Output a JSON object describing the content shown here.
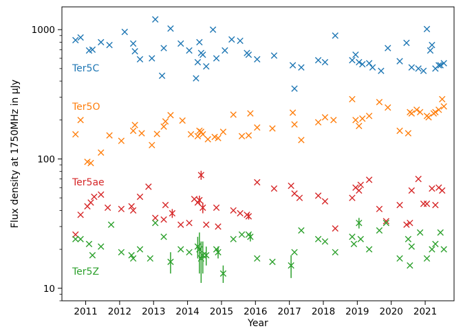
{
  "chart_data": {
    "type": "scatter",
    "xlabel": "Year",
    "ylabel": "Flux density at 1750MHz in μJy",
    "xlim": [
      2010.3,
      2021.85
    ],
    "ylim": [
      8.0,
      1500
    ],
    "yscale": "log",
    "grid": false,
    "legend": "none",
    "x_ticks": [
      2011,
      2012,
      2013,
      2014,
      2015,
      2016,
      2017,
      2018,
      2019,
      2020,
      2021
    ],
    "x_tick_labels": [
      "2011",
      "2012",
      "2013",
      "2014",
      "2015",
      "2016",
      "2017",
      "2018",
      "2019",
      "2020",
      "2021"
    ],
    "y_ticks": [
      10,
      100,
      1000
    ],
    "y_tick_labels": [
      "10",
      "100",
      "1000"
    ],
    "series": [
      {
        "name": "Ter5C",
        "color": "#1f77b4",
        "x": [
          2010.7,
          2010.85,
          2011.1,
          2011.2,
          2011.45,
          2011.7,
          2012.15,
          2012.4,
          2012.45,
          2012.6,
          2012.95,
          2013.05,
          2013.25,
          2013.3,
          2013.5,
          2013.8,
          2014.05,
          2014.25,
          2014.3,
          2014.35,
          2014.4,
          2014.45,
          2014.55,
          2014.75,
          2014.85,
          2015.1,
          2015.3,
          2015.55,
          2015.75,
          2015.8,
          2016.05,
          2016.55,
          2017.1,
          2017.15,
          2017.35,
          2017.85,
          2018.05,
          2018.35,
          2018.85,
          2018.95,
          2019.05,
          2019.15,
          2019.35,
          2019.45,
          2019.7,
          2019.9,
          2020.25,
          2020.45,
          2020.6,
          2020.8,
          2020.95,
          2021.05,
          2021.15,
          2021.2,
          2021.3,
          2021.4,
          2021.45,
          2021.55
        ],
        "y": [
          830,
          870,
          690,
          700,
          800,
          760,
          960,
          780,
          680,
          590,
          600,
          1200,
          440,
          720,
          1020,
          780,
          690,
          420,
          560,
          800,
          660,
          640,
          520,
          1000,
          600,
          690,
          840,
          820,
          660,
          640,
          590,
          630,
          530,
          350,
          510,
          580,
          560,
          900,
          580,
          640,
          560,
          540,
          550,
          510,
          480,
          720,
          570,
          790,
          510,
          500,
          480,
          1010,
          690,
          760,
          500,
          530,
          530,
          550
        ],
        "yerr": [
          0,
          0,
          0,
          0,
          0,
          0,
          0,
          0,
          0,
          0,
          0,
          0,
          0,
          0,
          0,
          0,
          0,
          0,
          0,
          0,
          0,
          0,
          0,
          0,
          0,
          0,
          0,
          0,
          0,
          0,
          0,
          0,
          0,
          0,
          0,
          0,
          0,
          0,
          0,
          0,
          0,
          0,
          0,
          0,
          0,
          0,
          0,
          0,
          0,
          0,
          0,
          0,
          0,
          0,
          0,
          0,
          0,
          0
        ]
      },
      {
        "name": "Ter5O",
        "color": "#ff7f0e",
        "x": [
          2010.7,
          2010.85,
          2011.05,
          2011.15,
          2011.45,
          2011.7,
          2012.05,
          2012.4,
          2012.45,
          2012.65,
          2012.95,
          2013.1,
          2013.3,
          2013.35,
          2013.5,
          2013.85,
          2014.1,
          2014.3,
          2014.35,
          2014.4,
          2014.45,
          2014.6,
          2014.8,
          2014.9,
          2015.05,
          2015.35,
          2015.6,
          2015.8,
          2015.85,
          2016.05,
          2016.5,
          2017.1,
          2017.15,
          2017.35,
          2017.85,
          2018.05,
          2018.3,
          2018.85,
          2018.95,
          2019.05,
          2019.15,
          2019.35,
          2019.65,
          2019.9,
          2020.25,
          2020.5,
          2020.55,
          2020.6,
          2020.75,
          2020.85,
          2021.05,
          2021.1,
          2021.25,
          2021.3,
          2021.4,
          2021.5,
          2021.55
        ],
        "y": [
          155,
          200,
          95,
          93,
          112,
          152,
          138,
          165,
          183,
          158,
          128,
          156,
          178,
          195,
          218,
          198,
          155,
          150,
          165,
          162,
          155,
          142,
          148,
          145,
          162,
          220,
          150,
          152,
          225,
          175,
          172,
          228,
          185,
          140,
          192,
          210,
          200,
          290,
          200,
          180,
          205,
          215,
          275,
          250,
          165,
          158,
          230,
          225,
          240,
          230,
          215,
          210,
          225,
          230,
          240,
          290,
          255
        ],
        "yerr": [
          0,
          0,
          0,
          0,
          0,
          0,
          0,
          0,
          0,
          0,
          0,
          0,
          0,
          0,
          0,
          0,
          0,
          0,
          0,
          0,
          0,
          0,
          0,
          0,
          0,
          0,
          0,
          0,
          0,
          0,
          0,
          0,
          0,
          0,
          0,
          0,
          0,
          0,
          0,
          0,
          0,
          0,
          0,
          0,
          0,
          0,
          0,
          0,
          0,
          0,
          0,
          0,
          0,
          0,
          0,
          0,
          0
        ]
      },
      {
        "name": "Ter5ae",
        "color": "#d62728",
        "x": [
          2010.7,
          2010.85,
          2011.05,
          2011.15,
          2011.25,
          2011.45,
          2011.65,
          2012.05,
          2012.35,
          2012.4,
          2012.6,
          2012.85,
          2013.05,
          2013.3,
          2013.35,
          2013.55,
          2013.8,
          2014.05,
          2014.2,
          2014.3,
          2014.35,
          2014.4,
          2014.45,
          2014.55,
          2014.85,
          2014.9,
          2015.35,
          2015.55,
          2015.75,
          2015.8,
          2016.05,
          2016.55,
          2017.05,
          2017.15,
          2017.3,
          2017.85,
          2018.05,
          2018.35,
          2018.85,
          2018.95,
          2019.05,
          2019.1,
          2019.35,
          2019.65,
          2019.85,
          2020.25,
          2020.45,
          2020.55,
          2020.6,
          2020.8,
          2020.95,
          2021.05,
          2021.2,
          2021.3,
          2021.4,
          2021.5
        ],
        "y": [
          26,
          37,
          43,
          46,
          51,
          53,
          42,
          41,
          43,
          40,
          51,
          61,
          35,
          34,
          44,
          38,
          31,
          32,
          49,
          46,
          48,
          75,
          42,
          31,
          42,
          30,
          40,
          38,
          37,
          36,
          66,
          59,
          62,
          54,
          50,
          52,
          47,
          29,
          50,
          60,
          57,
          63,
          69,
          41,
          33,
          44,
          31,
          32,
          57,
          70,
          45,
          45,
          59,
          44,
          60,
          57
        ],
        "yerr": [
          0,
          0,
          0,
          0,
          0,
          0,
          0,
          0,
          0,
          0,
          0,
          0,
          0,
          0,
          0,
          3,
          0,
          0,
          0,
          0,
          4,
          6,
          4,
          0,
          0,
          0,
          0,
          0,
          0,
          2,
          0,
          0,
          0,
          0,
          0,
          0,
          0,
          0,
          0,
          0,
          0,
          0,
          0,
          0,
          0,
          0,
          0,
          0,
          0,
          0,
          0,
          0,
          0,
          0,
          0,
          0
        ]
      },
      {
        "name": "Ter5Z",
        "color": "#2ca02c",
        "x": [
          2010.7,
          2010.85,
          2011.1,
          2011.2,
          2011.45,
          2011.75,
          2012.05,
          2012.35,
          2012.4,
          2012.6,
          2012.9,
          2013.05,
          2013.3,
          2013.5,
          2013.8,
          2014.05,
          2014.3,
          2014.35,
          2014.4,
          2014.45,
          2014.55,
          2014.85,
          2014.9,
          2015.05,
          2015.35,
          2015.6,
          2015.8,
          2015.85,
          2016.05,
          2016.5,
          2017.05,
          2017.15,
          2017.35,
          2017.85,
          2018.05,
          2018.35,
          2018.85,
          2018.9,
          2019.05,
          2019.1,
          2019.35,
          2019.65,
          2019.85,
          2020.25,
          2020.5,
          2020.55,
          2020.6,
          2020.85,
          2021.05,
          2021.2,
          2021.3,
          2021.45,
          2021.55
        ],
        "y": [
          24,
          24,
          22,
          18,
          21,
          31,
          19,
          18,
          17,
          20,
          17,
          32,
          25,
          16,
          20,
          19,
          21,
          20,
          17,
          18,
          18,
          20,
          19,
          13,
          24,
          26,
          26,
          25,
          17,
          16,
          15,
          19,
          28,
          24,
          23,
          19,
          25,
          22,
          32,
          24,
          20,
          28,
          32,
          17,
          24,
          15,
          21,
          27,
          17,
          20,
          22,
          27,
          20
        ],
        "yerr": [
          0,
          0,
          0,
          0,
          0,
          0,
          0,
          0,
          0,
          0,
          0,
          0,
          0,
          3,
          0,
          0,
          4,
          7,
          6,
          5,
          3,
          0,
          2,
          2,
          0,
          0,
          0,
          2,
          0,
          0,
          3,
          0,
          0,
          0,
          0,
          0,
          0,
          0,
          3,
          0,
          0,
          0,
          0,
          0,
          0,
          0,
          0,
          0,
          0,
          0,
          0,
          0,
          0
        ]
      }
    ],
    "annotations": [
      "Ter5C",
      "Ter5O",
      "Ter5ae",
      "Ter5Z"
    ]
  }
}
